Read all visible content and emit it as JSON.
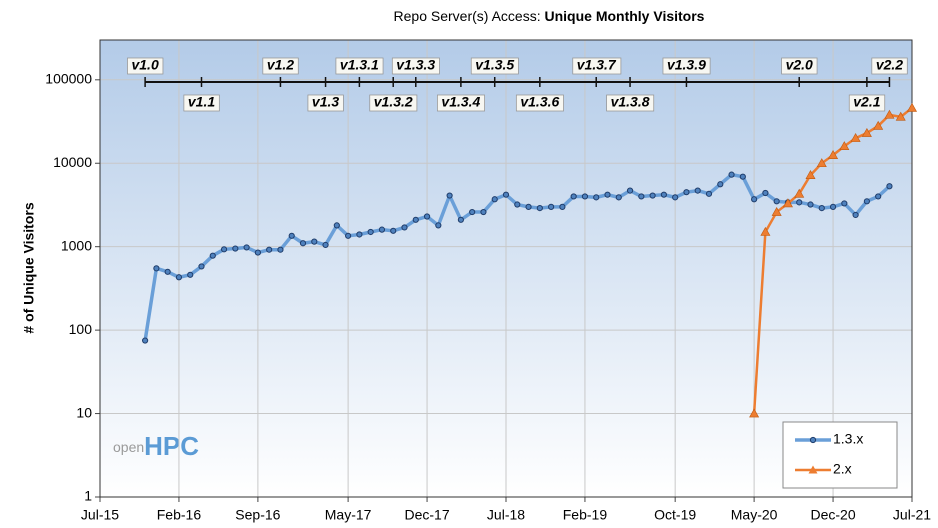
{
  "chart_data": {
    "type": "line",
    "title": "Repo Server(s) Access:",
    "title_bold": "Unique Monthly Visitors",
    "ylabel": "# of Unique Visitors",
    "log_scale": true,
    "grid": true,
    "legend": "bottom-right",
    "logo": [
      "open",
      "HPC"
    ],
    "xlim": [
      "2015-07",
      "2021-07"
    ],
    "xticks": [
      {
        "value": "2015-07",
        "label": "Jul-15"
      },
      {
        "value": "2016-02",
        "label": "Feb-16"
      },
      {
        "value": "2016-09",
        "label": "Sep-16"
      },
      {
        "value": "2017-05",
        "label": "May-17"
      },
      {
        "value": "2017-12",
        "label": "Dec-17"
      },
      {
        "value": "2018-07",
        "label": "Jul-18"
      },
      {
        "value": "2019-02",
        "label": "Feb-19"
      },
      {
        "value": "2019-10",
        "label": "Oct-19"
      },
      {
        "value": "2020-05",
        "label": "May-20"
      },
      {
        "value": "2020-12",
        "label": "Dec-20"
      },
      {
        "value": "2021-07",
        "label": "Jul-21"
      }
    ],
    "ylim": [
      1,
      300000
    ],
    "yticks": [
      1,
      10,
      100,
      1000,
      10000,
      100000
    ],
    "series": [
      {
        "name": "1.3.x",
        "color": "#6a9fd8",
        "marker_color": "#1f3d6b",
        "marker": "circle",
        "x": [
          "2015-11",
          "2015-12",
          "2016-01",
          "2016-02",
          "2016-03",
          "2016-04",
          "2016-05",
          "2016-06",
          "2016-07",
          "2016-08",
          "2016-09",
          "2016-10",
          "2016-11",
          "2016-12",
          "2017-01",
          "2017-02",
          "2017-03",
          "2017-04",
          "2017-05",
          "2017-06",
          "2017-07",
          "2017-08",
          "2017-09",
          "2017-10",
          "2017-11",
          "2017-12",
          "2018-01",
          "2018-02",
          "2018-03",
          "2018-04",
          "2018-05",
          "2018-06",
          "2018-07",
          "2018-08",
          "2018-09",
          "2018-10",
          "2018-11",
          "2018-12",
          "2019-01",
          "2019-02",
          "2019-03",
          "2019-04",
          "2019-05",
          "2019-06",
          "2019-07",
          "2019-08",
          "2019-09",
          "2019-10",
          "2019-11",
          "2019-12",
          "2020-01",
          "2020-02",
          "2020-03",
          "2020-04",
          "2020-05",
          "2020-06",
          "2020-07",
          "2020-08",
          "2020-09",
          "2020-10",
          "2020-11",
          "2020-12",
          "2021-01",
          "2021-02",
          "2021-03",
          "2021-04",
          "2021-05"
        ],
        "values": [
          75,
          550,
          500,
          430,
          460,
          580,
          780,
          930,
          950,
          980,
          850,
          920,
          920,
          1350,
          1100,
          1150,
          1050,
          1800,
          1350,
          1400,
          1500,
          1600,
          1550,
          1700,
          2100,
          2300,
          1800,
          4100,
          2100,
          2600,
          2600,
          3700,
          4200,
          3200,
          3000,
          2900,
          3000,
          3000,
          4000,
          4000,
          3900,
          4200,
          3900,
          4700,
          4000,
          4100,
          4200,
          3900,
          4500,
          4700,
          4300,
          5600,
          7300,
          6900,
          3700,
          4400,
          3500,
          3400,
          3400,
          3200,
          2900,
          3000,
          3300,
          2400,
          3500,
          4000,
          5300
        ]
      },
      {
        "name": "2.x",
        "color": "#ed7d31",
        "marker_color": "#ed7d31",
        "marker": "triangle",
        "x": [
          "2020-05",
          "2020-06",
          "2020-07",
          "2020-08",
          "2020-09",
          "2020-10",
          "2020-11",
          "2020-12",
          "2021-01",
          "2021-02",
          "2021-03",
          "2021-04",
          "2021-05",
          "2021-06",
          "2021-07"
        ],
        "values": [
          10,
          1500,
          2600,
          3300,
          4300,
          7200,
          10000,
          12500,
          16000,
          20000,
          23000,
          28000,
          38000,
          36000,
          46000
        ]
      }
    ],
    "annotations": [
      {
        "text": "v1.0",
        "x": "2015-11",
        "row": "top",
        "color": "#222222"
      },
      {
        "text": "v1.1",
        "x": "2016-04",
        "row": "bottom",
        "color": "#5b9bd5"
      },
      {
        "text": "v1.2",
        "x": "2016-11",
        "row": "top",
        "color": "#c55a11"
      },
      {
        "text": "v1.3",
        "x": "2017-03",
        "row": "bottom",
        "color": "#2e7d1e"
      },
      {
        "text": "v1.3.1",
        "x": "2017-06",
        "row": "top",
        "color": "#2e7d1e"
      },
      {
        "text": "v1.3.2",
        "x": "2017-09",
        "row": "bottom",
        "color": "#2e7d1e"
      },
      {
        "text": "v1.3.3",
        "x": "2017-11",
        "row": "top",
        "color": "#2e7d1e"
      },
      {
        "text": "v1.3.4",
        "x": "2018-03",
        "row": "bottom",
        "color": "#2e7d1e"
      },
      {
        "text": "v1.3.5",
        "x": "2018-06",
        "row": "top",
        "color": "#2e7d1e"
      },
      {
        "text": "v1.3.6",
        "x": "2018-10",
        "row": "bottom",
        "color": "#2e7d1e"
      },
      {
        "text": "v1.3.7",
        "x": "2019-03",
        "row": "top",
        "color": "#2e7d1e"
      },
      {
        "text": "v1.3.8",
        "x": "2019-06",
        "row": "bottom",
        "color": "#2e7d1e"
      },
      {
        "text": "v1.3.9",
        "x": "2019-11",
        "row": "top",
        "color": "#2e7d1e"
      },
      {
        "text": "v2.0",
        "x": "2020-09",
        "row": "top",
        "color": "#ed7d31"
      },
      {
        "text": "v2.1",
        "x": "2021-03",
        "row": "bottom",
        "color": "#ed7d31"
      },
      {
        "text": "v2.2",
        "x": "2021-05",
        "row": "top",
        "color": "#ed7d31"
      }
    ]
  }
}
